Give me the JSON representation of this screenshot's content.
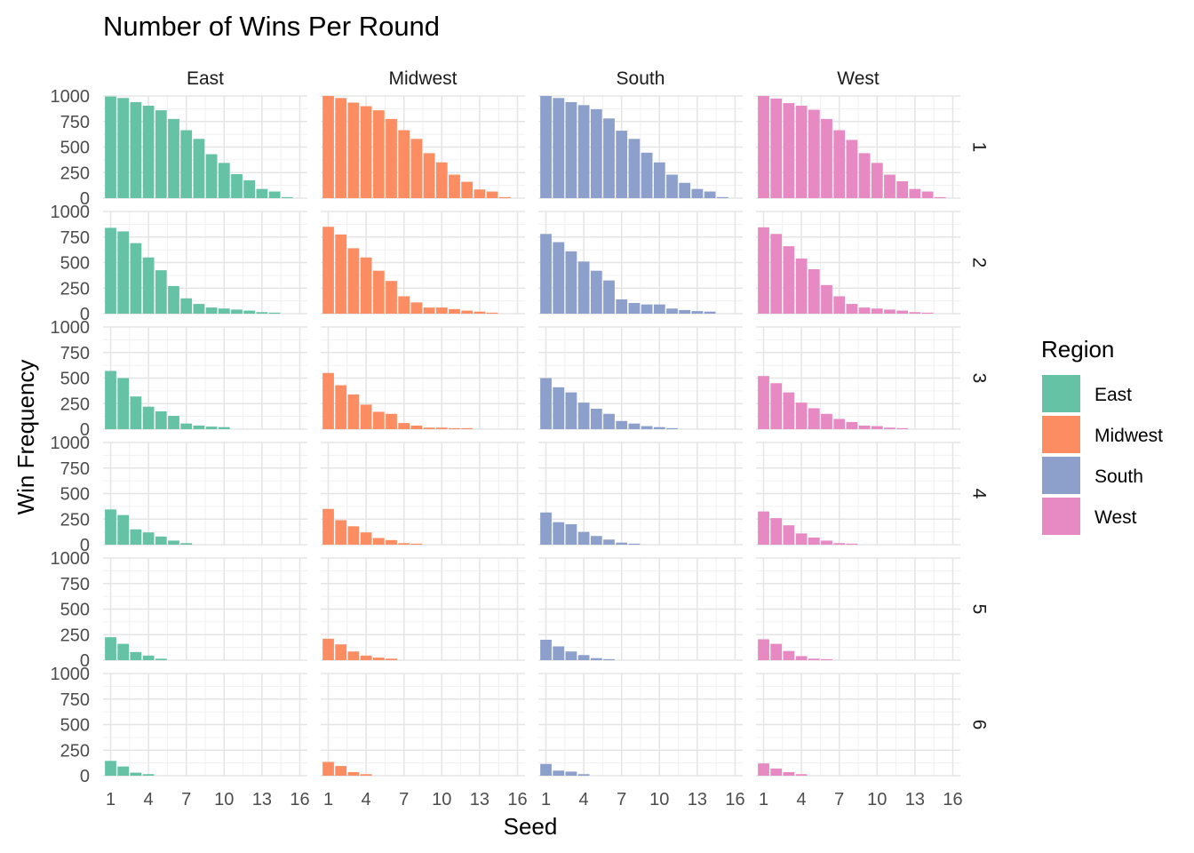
{
  "chart_data": {
    "type": "bar",
    "title": "Number of Wins Per Round",
    "xlabel": "Seed",
    "ylabel": "Win Frequency",
    "facet_columns": [
      "East",
      "Midwest",
      "South",
      "West"
    ],
    "facet_rows": [
      "1",
      "2",
      "3",
      "4",
      "5",
      "6"
    ],
    "x": [
      1,
      2,
      3,
      4,
      5,
      6,
      7,
      8,
      9,
      10,
      11,
      12,
      13,
      14,
      15,
      16
    ],
    "x_ticks": [
      1,
      4,
      7,
      10,
      13,
      16
    ],
    "x_tick_labels": [
      "1",
      "4",
      "7",
      "10",
      "13",
      "16"
    ],
    "ylim": [
      0,
      1000
    ],
    "y_ticks": [
      0,
      250,
      500,
      750,
      1000
    ],
    "y_tick_labels": [
      "0",
      "250",
      "500",
      "750",
      "1000"
    ],
    "grid": true,
    "legend": {
      "title": "Region",
      "position": "right",
      "entries": [
        {
          "name": "East",
          "color": "#66c2a5"
        },
        {
          "name": "Midwest",
          "color": "#fc8d62"
        },
        {
          "name": "South",
          "color": "#8da0cb"
        },
        {
          "name": "West",
          "color": "#e78ac3"
        }
      ]
    },
    "panels": {
      "East": {
        "1": [
          995,
          980,
          940,
          905,
          860,
          775,
          665,
          580,
          430,
          345,
          235,
          175,
          90,
          65,
          10,
          0
        ],
        "2": [
          840,
          805,
          690,
          550,
          425,
          270,
          150,
          95,
          60,
          50,
          40,
          30,
          15,
          10,
          0,
          0
        ],
        "3": [
          570,
          500,
          320,
          220,
          175,
          130,
          55,
          35,
          25,
          20,
          0,
          0,
          0,
          0,
          0,
          0
        ],
        "4": [
          345,
          290,
          150,
          120,
          80,
          40,
          15,
          0,
          0,
          0,
          0,
          0,
          0,
          0,
          0,
          0
        ],
        "5": [
          225,
          160,
          80,
          45,
          15,
          0,
          0,
          0,
          0,
          0,
          0,
          0,
          0,
          0,
          0,
          0
        ],
        "6": [
          145,
          90,
          30,
          15,
          0,
          0,
          0,
          0,
          0,
          0,
          0,
          0,
          0,
          0,
          0,
          0
        ]
      },
      "Midwest": {
        "1": [
          1000,
          980,
          935,
          900,
          860,
          775,
          665,
          580,
          440,
          350,
          230,
          160,
          85,
          65,
          10,
          0
        ],
        "2": [
          850,
          775,
          640,
          550,
          420,
          320,
          170,
          110,
          60,
          60,
          45,
          30,
          20,
          10,
          0,
          0
        ],
        "3": [
          550,
          430,
          340,
          240,
          170,
          150,
          60,
          35,
          15,
          15,
          10,
          10,
          0,
          0,
          0,
          0
        ],
        "4": [
          350,
          240,
          180,
          120,
          65,
          45,
          15,
          10,
          0,
          0,
          0,
          0,
          0,
          0,
          0,
          0
        ],
        "5": [
          210,
          155,
          85,
          45,
          25,
          15,
          0,
          0,
          0,
          0,
          0,
          0,
          0,
          0,
          0,
          0
        ],
        "6": [
          135,
          95,
          35,
          15,
          0,
          0,
          0,
          0,
          0,
          0,
          0,
          0,
          0,
          0,
          0,
          0
        ]
      },
      "South": {
        "1": [
          1000,
          980,
          940,
          910,
          870,
          780,
          660,
          580,
          445,
          350,
          230,
          150,
          90,
          65,
          10,
          0
        ],
        "2": [
          780,
          700,
          610,
          510,
          420,
          325,
          140,
          105,
          90,
          90,
          50,
          35,
          25,
          20,
          0,
          0
        ],
        "3": [
          500,
          410,
          360,
          260,
          200,
          150,
          80,
          55,
          30,
          20,
          10,
          0,
          0,
          0,
          0,
          0
        ],
        "4": [
          315,
          220,
          200,
          125,
          85,
          50,
          20,
          10,
          0,
          0,
          0,
          0,
          0,
          0,
          0,
          0
        ],
        "5": [
          200,
          135,
          85,
          50,
          20,
          10,
          0,
          0,
          0,
          0,
          0,
          0,
          0,
          0,
          0,
          0
        ],
        "6": [
          115,
          50,
          40,
          15,
          0,
          0,
          0,
          0,
          0,
          0,
          0,
          0,
          0,
          0,
          0,
          0
        ]
      },
      "West": {
        "1": [
          1000,
          975,
          930,
          905,
          865,
          775,
          665,
          570,
          440,
          345,
          230,
          165,
          90,
          65,
          10,
          0
        ],
        "2": [
          845,
          780,
          660,
          540,
          435,
          280,
          170,
          95,
          60,
          50,
          40,
          30,
          15,
          10,
          0,
          0
        ],
        "3": [
          520,
          450,
          360,
          260,
          205,
          150,
          100,
          70,
          35,
          30,
          15,
          10,
          0,
          0,
          0,
          0
        ],
        "4": [
          325,
          260,
          190,
          110,
          70,
          40,
          15,
          10,
          0,
          0,
          0,
          0,
          0,
          0,
          0,
          0
        ],
        "5": [
          205,
          160,
          90,
          40,
          15,
          10,
          0,
          0,
          0,
          0,
          0,
          0,
          0,
          0,
          0,
          0
        ],
        "6": [
          120,
          70,
          35,
          15,
          0,
          0,
          0,
          0,
          0,
          0,
          0,
          0,
          0,
          0,
          0,
          0
        ]
      }
    }
  }
}
